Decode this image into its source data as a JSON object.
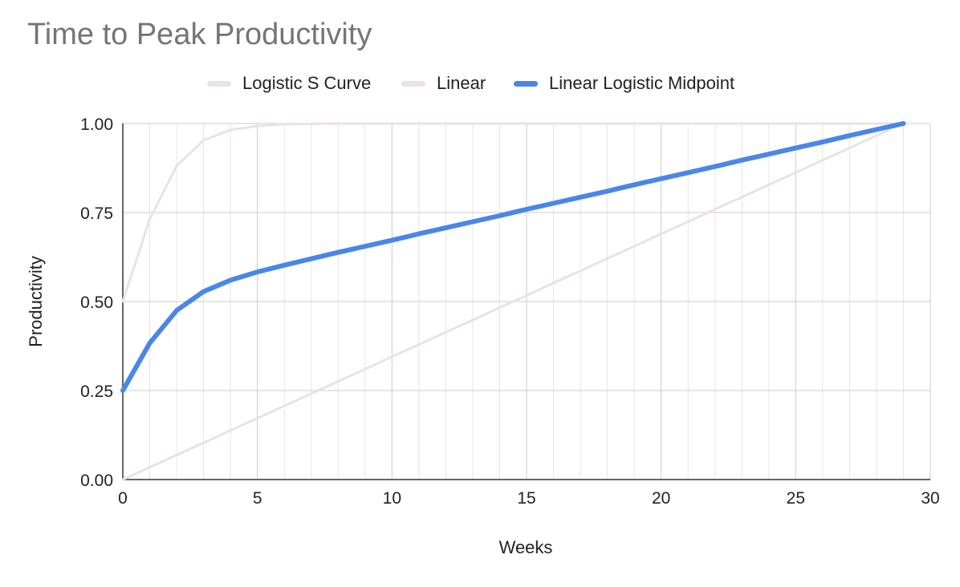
{
  "chart_data": {
    "type": "line",
    "title": "Time to Peak Productivity",
    "xlabel": "Weeks",
    "ylabel": "Productivity",
    "xlim": [
      0,
      30
    ],
    "ylim": [
      0,
      1
    ],
    "x_ticks": [
      "0",
      "5",
      "10",
      "15",
      "20",
      "25",
      "30"
    ],
    "y_ticks": [
      "0.00",
      "0.25",
      "0.50",
      "0.75",
      "1.00"
    ],
    "grid": true,
    "legend_position": "top",
    "series": [
      {
        "name": "Logistic S Curve",
        "color": "#eae3e3",
        "x": [
          0,
          1,
          2,
          3,
          4,
          5,
          6,
          7,
          8,
          9,
          10,
          11,
          12,
          13,
          14,
          15,
          16,
          17,
          18,
          19,
          20,
          21,
          22,
          23,
          24,
          25,
          26,
          27,
          28,
          29
        ],
        "y": [
          0.5,
          0.731,
          0.881,
          0.953,
          0.982,
          0.993,
          0.998,
          0.999,
          1,
          1,
          1,
          1,
          1,
          1,
          1,
          1,
          1,
          1,
          1,
          1,
          1,
          1,
          1,
          1,
          1,
          1,
          1,
          1,
          1,
          1
        ]
      },
      {
        "name": "Linear",
        "color": "#eae3e3",
        "x": [
          0,
          1,
          2,
          3,
          4,
          5,
          6,
          7,
          8,
          9,
          10,
          11,
          12,
          13,
          14,
          15,
          16,
          17,
          18,
          19,
          20,
          21,
          22,
          23,
          24,
          25,
          26,
          27,
          28,
          29
        ],
        "y": [
          0,
          0.034,
          0.069,
          0.103,
          0.138,
          0.172,
          0.207,
          0.241,
          0.276,
          0.31,
          0.345,
          0.379,
          0.414,
          0.448,
          0.483,
          0.517,
          0.552,
          0.586,
          0.621,
          0.655,
          0.69,
          0.724,
          0.759,
          0.793,
          0.828,
          0.862,
          0.897,
          0.931,
          0.966,
          1
        ]
      },
      {
        "name": "Linear Logistic Midpoint",
        "color": "#4a86e8",
        "x": [
          0,
          1,
          2,
          3,
          4,
          5,
          6,
          7,
          8,
          9,
          10,
          11,
          12,
          13,
          14,
          15,
          16,
          17,
          18,
          19,
          20,
          21,
          22,
          23,
          24,
          25,
          26,
          27,
          28,
          29
        ],
        "y": [
          0.25,
          0.383,
          0.475,
          0.528,
          0.56,
          0.583,
          0.602,
          0.62,
          0.638,
          0.655,
          0.672,
          0.69,
          0.707,
          0.724,
          0.741,
          0.759,
          0.776,
          0.793,
          0.81,
          0.828,
          0.845,
          0.862,
          0.879,
          0.897,
          0.914,
          0.931,
          0.948,
          0.966,
          0.983,
          1
        ]
      }
    ]
  }
}
